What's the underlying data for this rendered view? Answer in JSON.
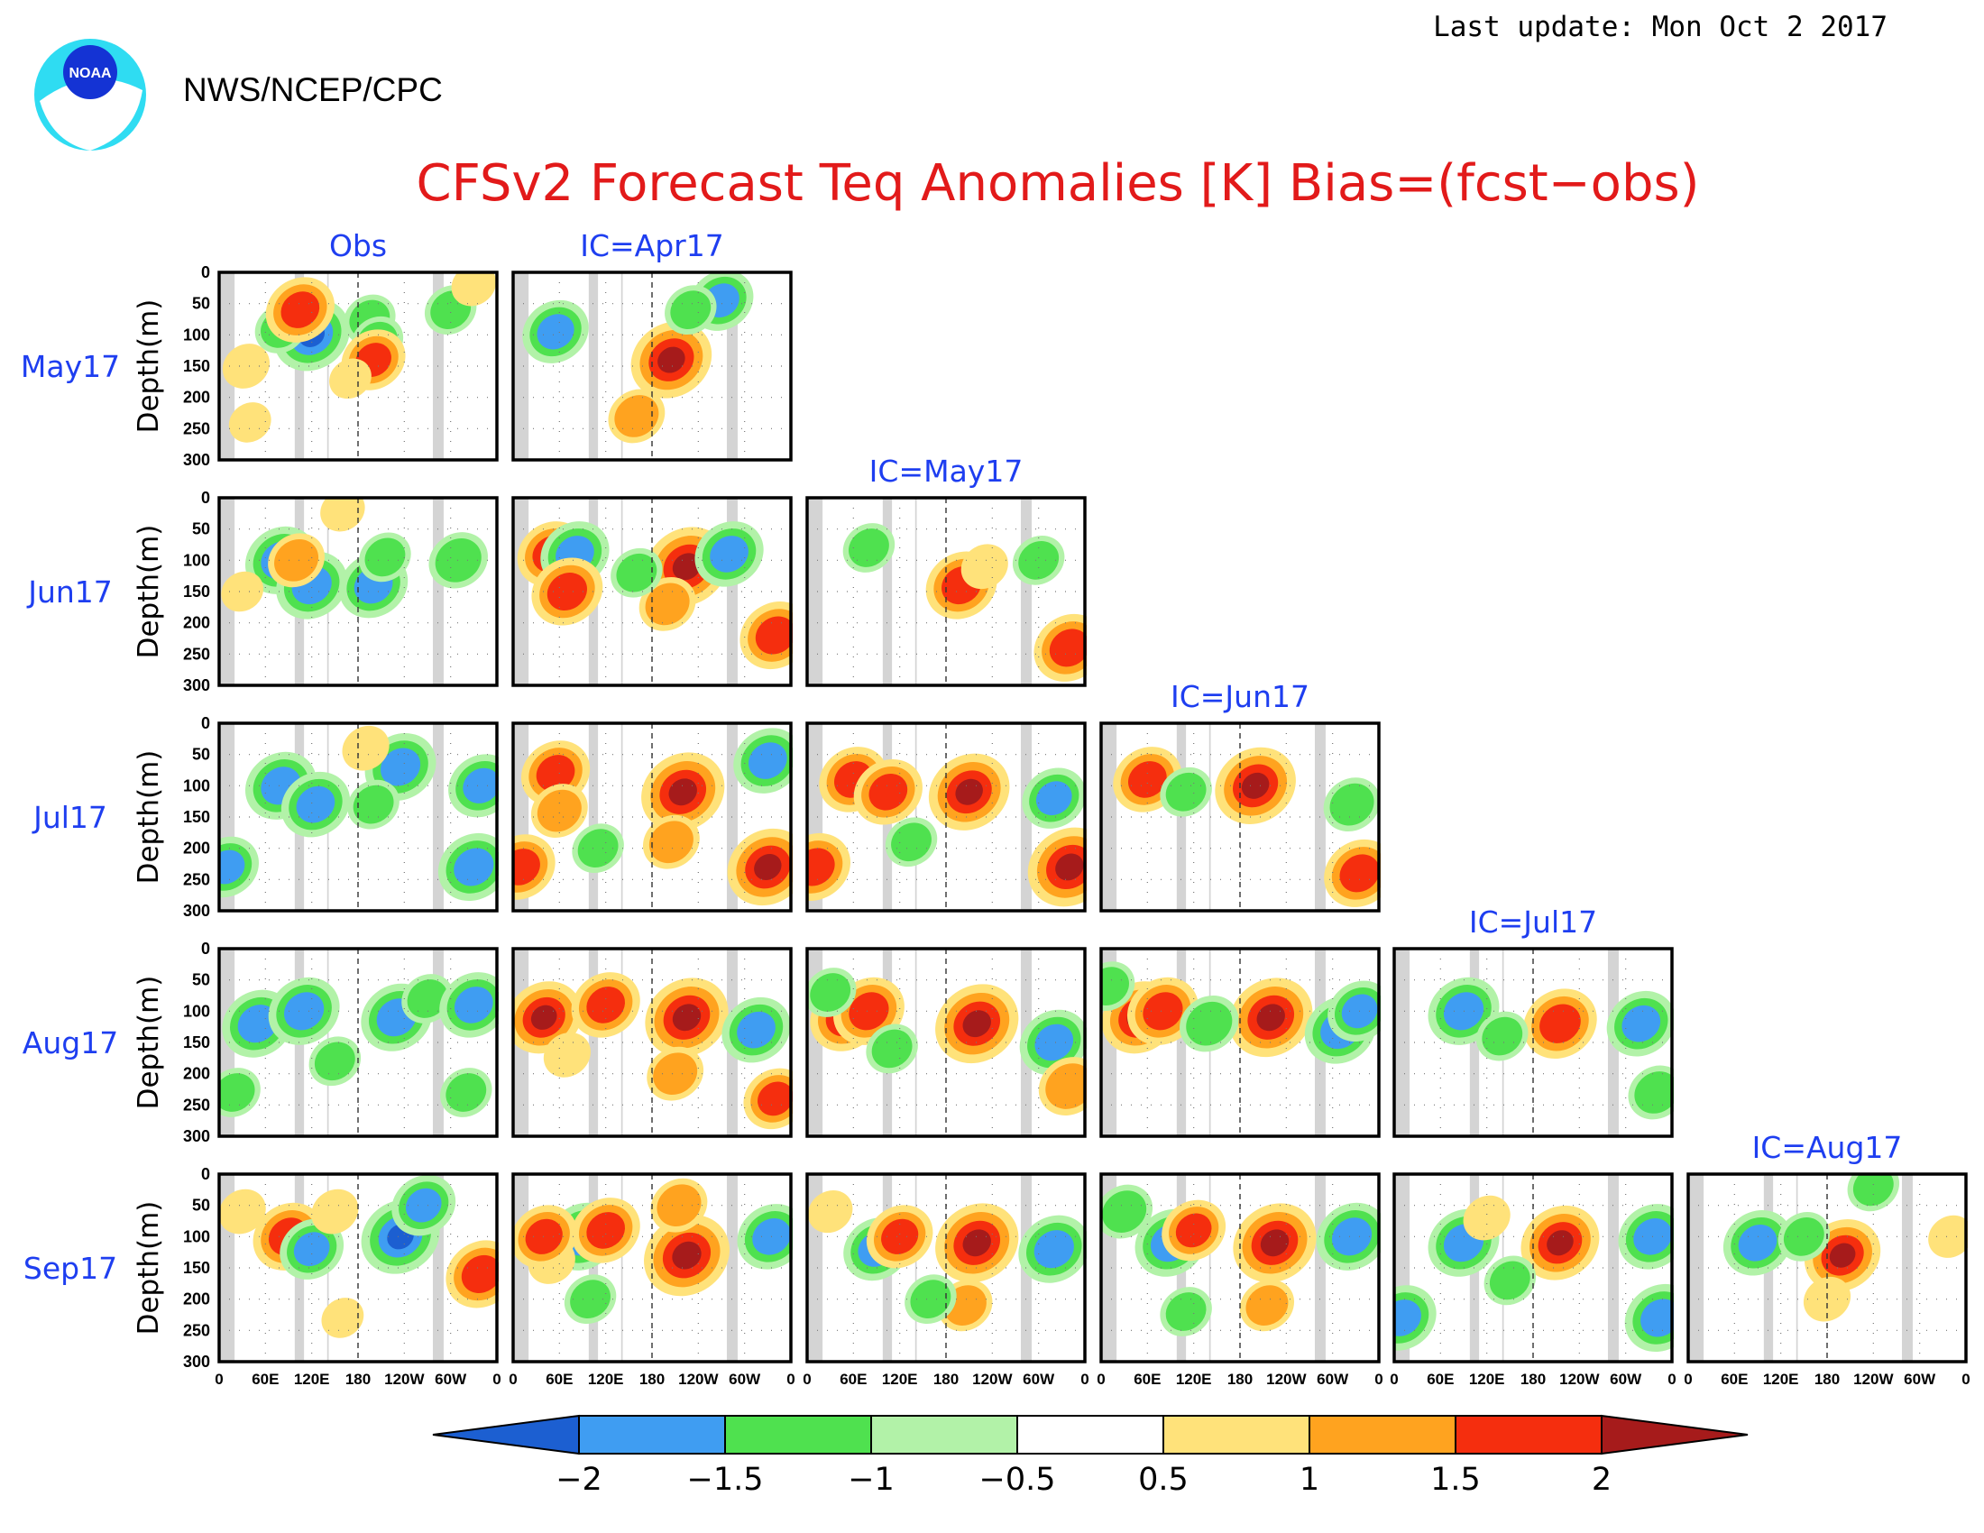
{
  "header": {
    "last_update": "Last update: Mon Oct 2 2017",
    "agency": "NWS/NCEP/CPC",
    "logo_text": "NOAA"
  },
  "chart_data": {
    "type": "heatmap",
    "title": "CFSv2 Forecast Teq Anomalies [K] Bias=(fcst−obs)",
    "ylabel": "Depth(m)",
    "y_ticks": [
      "0",
      "50",
      "100",
      "150",
      "200",
      "250",
      "300"
    ],
    "x_ticks": [
      "0",
      "60E",
      "120E",
      "180",
      "120W",
      "60W",
      "0"
    ],
    "ylim": [
      300,
      0
    ],
    "xlim": [
      0,
      360
    ],
    "row_labels": [
      "May17",
      "Jun17",
      "Jul17",
      "Aug17",
      "Sep17"
    ],
    "column_labels": [
      "Obs",
      "IC=Apr17",
      "IC=May17",
      "IC=Jun17",
      "IC=Jul17",
      "IC=Aug17"
    ],
    "colorbar": {
      "levels": [
        "−2",
        "−1.5",
        "−1",
        "−0.5",
        "0.5",
        "1",
        "1.5",
        "2"
      ],
      "colors": [
        "#1c5fd1",
        "#3f9df2",
        "#4fe14f",
        "#b2f2a8",
        "#ffffff",
        "#ffe27a",
        "#ffa31f",
        "#f52e0e",
        "#a61b1b"
      ]
    },
    "land_color": "#d4d4d4",
    "anomaly_features": [
      {
        "row": 0,
        "col": 0,
        "features": [
          {
            "lon": 120,
            "depth": 100,
            "value": -2
          },
          {
            "lon": 80,
            "depth": 90,
            "value": -1
          },
          {
            "lon": 195,
            "depth": 75,
            "value": -1
          },
          {
            "lon": 205,
            "depth": 110,
            "value": -1
          },
          {
            "lon": 200,
            "depth": 140,
            "value": 1.5
          },
          {
            "lon": 35,
            "depth": 150,
            "value": 0.8
          },
          {
            "lon": 40,
            "depth": 240,
            "value": 0.6
          },
          {
            "lon": 170,
            "depth": 170,
            "value": 0.6
          },
          {
            "lon": 105,
            "depth": 60,
            "value": 1.7
          },
          {
            "lon": 300,
            "depth": 60,
            "value": -1
          },
          {
            "lon": 330,
            "depth": 20,
            "value": 0.7
          }
        ]
      },
      {
        "row": 0,
        "col": 1,
        "features": [
          {
            "lon": 55,
            "depth": 95,
            "value": -1.6
          },
          {
            "lon": 205,
            "depth": 140,
            "value": 2.2
          },
          {
            "lon": 160,
            "depth": 230,
            "value": 1.2
          },
          {
            "lon": 270,
            "depth": 45,
            "value": -1.5
          },
          {
            "lon": 230,
            "depth": 60,
            "value": -1
          }
        ]
      },
      {
        "row": 1,
        "col": 0,
        "features": [
          {
            "lon": 80,
            "depth": 100,
            "value": -1.8
          },
          {
            "lon": 120,
            "depth": 140,
            "value": -1.8
          },
          {
            "lon": 100,
            "depth": 100,
            "value": 1.2
          },
          {
            "lon": 200,
            "depth": 140,
            "value": -1.7
          },
          {
            "lon": 215,
            "depth": 95,
            "value": -1
          },
          {
            "lon": 310,
            "depth": 100,
            "value": -1.3
          },
          {
            "lon": 160,
            "depth": 20,
            "value": 0.7
          },
          {
            "lon": 30,
            "depth": 150,
            "value": 0.6
          }
        ]
      },
      {
        "row": 1,
        "col": 1,
        "features": [
          {
            "lon": 50,
            "depth": 90,
            "value": 1.7
          },
          {
            "lon": 80,
            "depth": 90,
            "value": -1.7
          },
          {
            "lon": 70,
            "depth": 150,
            "value": 1.8
          },
          {
            "lon": 225,
            "depth": 110,
            "value": 2.3
          },
          {
            "lon": 200,
            "depth": 170,
            "value": 1.2
          },
          {
            "lon": 280,
            "depth": 90,
            "value": -1.7
          },
          {
            "lon": 340,
            "depth": 220,
            "value": 1.8
          },
          {
            "lon": 160,
            "depth": 120,
            "value": -1
          }
        ]
      },
      {
        "row": 1,
        "col": 2,
        "features": [
          {
            "lon": 80,
            "depth": 80,
            "value": -1
          },
          {
            "lon": 200,
            "depth": 140,
            "value": 1.8
          },
          {
            "lon": 230,
            "depth": 110,
            "value": 0.8
          },
          {
            "lon": 340,
            "depth": 240,
            "value": 1.8
          },
          {
            "lon": 300,
            "depth": 100,
            "value": -1
          }
        ]
      },
      {
        "row": 2,
        "col": 0,
        "features": [
          {
            "lon": 80,
            "depth": 100,
            "value": -1.8
          },
          {
            "lon": 125,
            "depth": 130,
            "value": -1.7
          },
          {
            "lon": 235,
            "depth": 70,
            "value": -1.8
          },
          {
            "lon": 200,
            "depth": 130,
            "value": -1
          },
          {
            "lon": 330,
            "depth": 230,
            "value": -1.8
          },
          {
            "lon": 340,
            "depth": 100,
            "value": -1.6
          },
          {
            "lon": 190,
            "depth": 40,
            "value": 0.8
          },
          {
            "lon": 10,
            "depth": 230,
            "value": -1.5
          }
        ]
      },
      {
        "row": 2,
        "col": 1,
        "features": [
          {
            "lon": 55,
            "depth": 80,
            "value": 1.7
          },
          {
            "lon": 60,
            "depth": 140,
            "value": 1.2
          },
          {
            "lon": 220,
            "depth": 110,
            "value": 2.3
          },
          {
            "lon": 205,
            "depth": 190,
            "value": 1.2
          },
          {
            "lon": 330,
            "depth": 230,
            "value": 2.2
          },
          {
            "lon": 330,
            "depth": 60,
            "value": -1.7
          },
          {
            "lon": 110,
            "depth": 200,
            "value": -1
          },
          {
            "lon": 10,
            "depth": 230,
            "value": 1.7
          }
        ]
      },
      {
        "row": 2,
        "col": 2,
        "features": [
          {
            "lon": 60,
            "depth": 90,
            "value": 1.7
          },
          {
            "lon": 105,
            "depth": 110,
            "value": 1.7
          },
          {
            "lon": 210,
            "depth": 110,
            "value": 2.2
          },
          {
            "lon": 340,
            "depth": 230,
            "value": 2.3
          },
          {
            "lon": 320,
            "depth": 120,
            "value": -1.5
          },
          {
            "lon": 10,
            "depth": 230,
            "value": 1.8
          },
          {
            "lon": 135,
            "depth": 190,
            "value": -1
          }
        ]
      },
      {
        "row": 2,
        "col": 3,
        "features": [
          {
            "lon": 60,
            "depth": 90,
            "value": 1.7
          },
          {
            "lon": 200,
            "depth": 100,
            "value": 2.2
          },
          {
            "lon": 335,
            "depth": 240,
            "value": 1.8
          },
          {
            "lon": 325,
            "depth": 130,
            "value": -1.2
          },
          {
            "lon": 110,
            "depth": 110,
            "value": -1
          }
        ]
      },
      {
        "row": 3,
        "col": 0,
        "features": [
          {
            "lon": 50,
            "depth": 120,
            "value": -1.8
          },
          {
            "lon": 110,
            "depth": 100,
            "value": -1.8
          },
          {
            "lon": 230,
            "depth": 110,
            "value": -1.8
          },
          {
            "lon": 270,
            "depth": 80,
            "value": -1
          },
          {
            "lon": 330,
            "depth": 90,
            "value": -1.7
          },
          {
            "lon": 320,
            "depth": 230,
            "value": -1
          },
          {
            "lon": 20,
            "depth": 230,
            "value": -1
          },
          {
            "lon": 150,
            "depth": 180,
            "value": -1
          }
        ]
      },
      {
        "row": 3,
        "col": 1,
        "features": [
          {
            "lon": 40,
            "depth": 110,
            "value": 2
          },
          {
            "lon": 120,
            "depth": 90,
            "value": 1.7
          },
          {
            "lon": 225,
            "depth": 110,
            "value": 2.3
          },
          {
            "lon": 210,
            "depth": 200,
            "value": 1.2
          },
          {
            "lon": 315,
            "depth": 130,
            "value": -1.7
          },
          {
            "lon": 340,
            "depth": 240,
            "value": 1.5
          },
          {
            "lon": 70,
            "depth": 170,
            "value": 0.8
          }
        ]
      },
      {
        "row": 3,
        "col": 2,
        "features": [
          {
            "lon": 50,
            "depth": 110,
            "value": 1.8
          },
          {
            "lon": 80,
            "depth": 100,
            "value": 1.8
          },
          {
            "lon": 220,
            "depth": 120,
            "value": 2.3
          },
          {
            "lon": 320,
            "depth": 150,
            "value": -1.7
          },
          {
            "lon": 340,
            "depth": 220,
            "value": 1.4
          },
          {
            "lon": 110,
            "depth": 160,
            "value": -1
          },
          {
            "lon": 30,
            "depth": 70,
            "value": -1
          }
        ]
      },
      {
        "row": 3,
        "col": 3,
        "features": [
          {
            "lon": 50,
            "depth": 110,
            "value": 2
          },
          {
            "lon": 80,
            "depth": 100,
            "value": 1.8
          },
          {
            "lon": 220,
            "depth": 110,
            "value": 2.3
          },
          {
            "lon": 310,
            "depth": 130,
            "value": -1.8
          },
          {
            "lon": 335,
            "depth": 100,
            "value": -1.5
          },
          {
            "lon": 140,
            "depth": 120,
            "value": -1.3
          },
          {
            "lon": 10,
            "depth": 60,
            "value": -1
          }
        ]
      },
      {
        "row": 3,
        "col": 4,
        "features": [
          {
            "lon": 90,
            "depth": 100,
            "value": -1.8
          },
          {
            "lon": 215,
            "depth": 120,
            "value": 1.9
          },
          {
            "lon": 320,
            "depth": 120,
            "value": -1.7
          },
          {
            "lon": 340,
            "depth": 230,
            "value": -1.2
          },
          {
            "lon": 140,
            "depth": 140,
            "value": -1
          }
        ]
      },
      {
        "row": 4,
        "col": 0,
        "features": [
          {
            "lon": 90,
            "depth": 100,
            "value": 1.8
          },
          {
            "lon": 120,
            "depth": 120,
            "value": -1.5
          },
          {
            "lon": 235,
            "depth": 100,
            "value": -2.1
          },
          {
            "lon": 265,
            "depth": 50,
            "value": -1.5
          },
          {
            "lon": 340,
            "depth": 160,
            "value": 1.8
          },
          {
            "lon": 30,
            "depth": 60,
            "value": 0.8
          },
          {
            "lon": 150,
            "depth": 60,
            "value": 0.8
          },
          {
            "lon": 160,
            "depth": 230,
            "value": 0.6
          }
        ]
      },
      {
        "row": 4,
        "col": 1,
        "features": [
          {
            "lon": 90,
            "depth": 100,
            "value": -1.8
          },
          {
            "lon": 120,
            "depth": 90,
            "value": 1.7
          },
          {
            "lon": 225,
            "depth": 130,
            "value": 2.4
          },
          {
            "lon": 215,
            "depth": 50,
            "value": 1.2
          },
          {
            "lon": 335,
            "depth": 100,
            "value": -1.7
          },
          {
            "lon": 50,
            "depth": 140,
            "value": 0.8
          },
          {
            "lon": 40,
            "depth": 100,
            "value": 1.6
          },
          {
            "lon": 100,
            "depth": 200,
            "value": -1
          }
        ]
      },
      {
        "row": 4,
        "col": 2,
        "features": [
          {
            "lon": 90,
            "depth": 120,
            "value": -1.6
          },
          {
            "lon": 120,
            "depth": 100,
            "value": 1.6
          },
          {
            "lon": 220,
            "depth": 110,
            "value": 2.3
          },
          {
            "lon": 205,
            "depth": 210,
            "value": 1.1
          },
          {
            "lon": 320,
            "depth": 120,
            "value": -1.8
          },
          {
            "lon": 160,
            "depth": 200,
            "value": -1
          },
          {
            "lon": 30,
            "depth": 60,
            "value": 0.7
          }
        ]
      },
      {
        "row": 4,
        "col": 3,
        "features": [
          {
            "lon": 90,
            "depth": 110,
            "value": -1.8
          },
          {
            "lon": 120,
            "depth": 90,
            "value": 1.5
          },
          {
            "lon": 225,
            "depth": 110,
            "value": 2.3
          },
          {
            "lon": 215,
            "depth": 210,
            "value": 1.1
          },
          {
            "lon": 325,
            "depth": 100,
            "value": -1.8
          },
          {
            "lon": 110,
            "depth": 220,
            "value": -1
          },
          {
            "lon": 30,
            "depth": 60,
            "value": -1.2
          }
        ]
      },
      {
        "row": 4,
        "col": 4,
        "features": [
          {
            "lon": 90,
            "depth": 110,
            "value": -1.8
          },
          {
            "lon": 215,
            "depth": 110,
            "value": 2.1
          },
          {
            "lon": 335,
            "depth": 100,
            "value": -1.7
          },
          {
            "lon": 345,
            "depth": 230,
            "value": -1.8
          },
          {
            "lon": 10,
            "depth": 230,
            "value": -1.7
          },
          {
            "lon": 150,
            "depth": 170,
            "value": -1
          },
          {
            "lon": 120,
            "depth": 70,
            "value": 0.8
          }
        ]
      },
      {
        "row": 4,
        "col": 5,
        "features": [
          {
            "lon": 90,
            "depth": 110,
            "value": -1.7
          },
          {
            "lon": 200,
            "depth": 130,
            "value": 2
          },
          {
            "lon": 180,
            "depth": 200,
            "value": 0.8
          },
          {
            "lon": 150,
            "depth": 100,
            "value": -1
          },
          {
            "lon": 340,
            "depth": 100,
            "value": 0.7
          },
          {
            "lon": 240,
            "depth": 20,
            "value": -1
          }
        ]
      }
    ]
  }
}
